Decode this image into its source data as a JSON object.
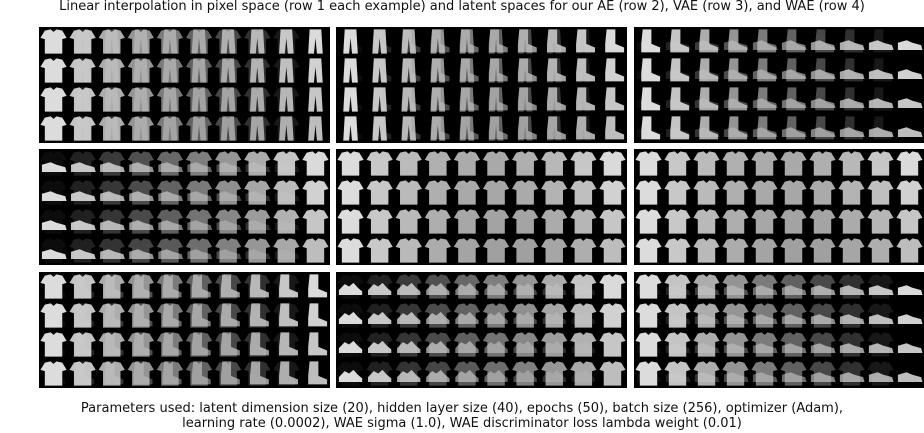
{
  "figure": {
    "title": "Linear interpolation in pixel space (row 1 each example) and latent spaces for our AE (row 2), VAE (row 3), and WAE (row 4)",
    "caption_line1": "Parameters used: latent dimension size (20), hidden layer size (40), epochs (50), batch size (256), optimizer (Adam),",
    "caption_line2": "learning rate (0.0002), WAE sigma (1.0), WAE discriminator loss lambda weight (0.01)"
  },
  "examples": [
    {
      "from": "shirt",
      "to": "trousers"
    },
    {
      "from": "trousers",
      "to": "boot"
    },
    {
      "from": "boot",
      "to": "sneaker"
    },
    {
      "from": "sneaker",
      "to": "pullover"
    },
    {
      "from": "pullover",
      "to": "pullover"
    },
    {
      "from": "pullover",
      "to": "pullover"
    },
    {
      "from": "pullover",
      "to": "boot"
    },
    {
      "from": "sandal",
      "to": "pullover"
    },
    {
      "from": "pullover",
      "to": "sneaker"
    }
  ],
  "rows_per_example": 4,
  "steps_per_row": 10
}
